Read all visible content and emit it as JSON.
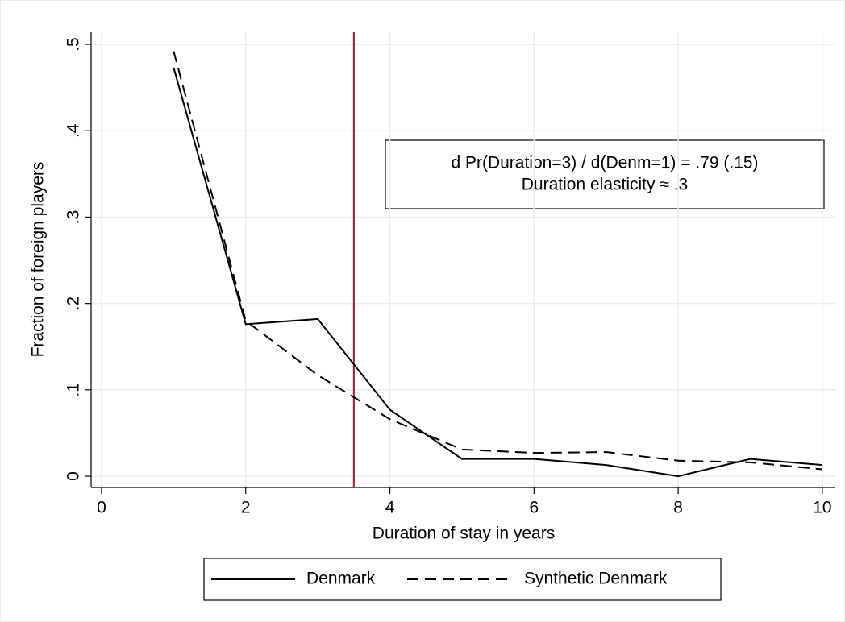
{
  "chart_data": {
    "type": "line",
    "x": [
      1,
      2,
      3,
      4,
      5,
      6,
      7,
      8,
      9,
      10
    ],
    "series": [
      {
        "name": "Denmark",
        "color": "#000000",
        "dash": "solid",
        "values": [
          0.473,
          0.176,
          0.182,
          0.077,
          0.02,
          0.02,
          0.013,
          0.0,
          0.02,
          0.013
        ]
      },
      {
        "name": "Synthetic Denmark",
        "color": "#000000",
        "dash": "dashed",
        "values": [
          0.492,
          0.18,
          0.117,
          0.066,
          0.031,
          0.027,
          0.028,
          0.018,
          0.016,
          0.008
        ]
      }
    ],
    "xlabel": "Duration of stay in years",
    "ylabel": "Fraction of foreign players",
    "xlim": [
      -0.145,
      10.18
    ],
    "ylim": [
      -0.013,
      0.514
    ],
    "xticks": [
      0,
      2,
      4,
      6,
      8,
      10
    ],
    "yticks": [
      0,
      {
        "value": 0.1,
        "label": ".1"
      },
      {
        "value": 0.2,
        "label": ".2"
      },
      {
        "value": 0.3,
        "label": ".3"
      },
      {
        "value": 0.4,
        "label": ".4"
      },
      {
        "value": 0.5,
        "label": ".5"
      }
    ],
    "grid": true,
    "vline": {
      "x": 3.5,
      "color": "#9b1b30"
    },
    "annotation": [
      "d Pr(Duration=3) / d(Denm=1) = .79 (.15)",
      "Duration elasticity ≈ .3"
    ],
    "legend": "bottom"
  }
}
